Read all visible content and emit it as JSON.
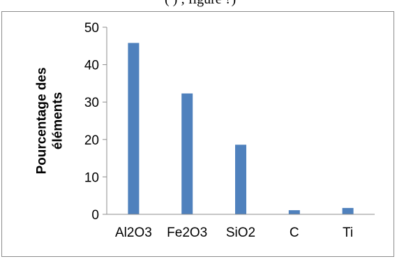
{
  "header_fragment": "(                   ) ; figure ?)",
  "chart_data": {
    "type": "bar",
    "title": "",
    "xlabel": "",
    "ylabel": [
      "Pourcentage des",
      "éléments"
    ],
    "categories": [
      "Al2O3",
      "Fe2O3",
      "SiO2",
      "C",
      "Ti"
    ],
    "values": [
      45.8,
      32.3,
      18.6,
      1.1,
      1.7
    ],
    "ylim": [
      0,
      50
    ],
    "yticks": [
      0,
      10,
      20,
      30,
      40,
      50
    ],
    "grid": false,
    "legend": "none",
    "bar_color": "#4f81bd"
  }
}
